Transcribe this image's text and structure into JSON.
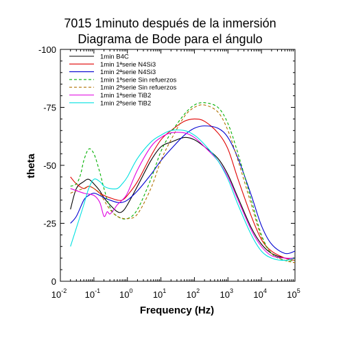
{
  "chart_data": {
    "type": "line",
    "title": [
      "7015 1minuto después de la inmersión",
      "Diagrama de Bode para el ángulo"
    ],
    "xlabel": "Frequency (Hz)",
    "ylabel": "theta",
    "xscale": "log",
    "xlim": [
      0.01,
      100000
    ],
    "ylim": [
      0,
      -100
    ],
    "y_reversed": true,
    "xticks": [
      {
        "base": "10",
        "exp": "-2",
        "value": 0.01
      },
      {
        "base": "10",
        "exp": "-1",
        "value": 0.1
      },
      {
        "base": "10",
        "exp": "0",
        "value": 1
      },
      {
        "base": "10",
        "exp": "1",
        "value": 10
      },
      {
        "base": "10",
        "exp": "2",
        "value": 100
      },
      {
        "base": "10",
        "exp": "3",
        "value": 1000
      },
      {
        "base": "10",
        "exp": "4",
        "value": 10000
      },
      {
        "base": "10",
        "exp": "5",
        "value": 100000
      }
    ],
    "yticks": [
      {
        "label": "0",
        "value": 0
      },
      {
        "label": "-25",
        "value": -25
      },
      {
        "label": "-50",
        "value": -50
      },
      {
        "label": "-75",
        "value": -75
      },
      {
        "label": "-100",
        "value": -100
      }
    ],
    "grid": false,
    "legend_position": "top-left",
    "series": [
      {
        "name": "1min B4C",
        "color": "#000000",
        "dash": "solid",
        "x": [
          0.02,
          0.03,
          0.05,
          0.07,
          0.1,
          0.15,
          0.2,
          0.3,
          0.5,
          0.7,
          1,
          2,
          5,
          10,
          20,
          50,
          100,
          200,
          500,
          1000,
          2000,
          5000,
          10000,
          20000,
          50000,
          100000
        ],
        "y": [
          -31,
          -40,
          -43,
          -44,
          -42,
          -39,
          -36,
          -33,
          -30,
          -30,
          -33,
          -41,
          -52,
          -58,
          -60,
          -62,
          -61,
          -58,
          -53,
          -46,
          -36,
          -23,
          -16,
          -12,
          -10,
          -10
        ]
      },
      {
        "name": "1min 1ªserie N4Si3",
        "color": "#e00000",
        "dash": "solid",
        "x": [
          0.02,
          0.03,
          0.05,
          0.07,
          0.1,
          0.15,
          0.2,
          0.3,
          0.5,
          0.7,
          1,
          2,
          5,
          10,
          20,
          50,
          100,
          200,
          500,
          1000,
          2000,
          5000,
          10000,
          20000,
          50000,
          100000
        ],
        "y": [
          -45,
          -42,
          -40,
          -41,
          -40,
          -38,
          -37,
          -36,
          -35,
          -35,
          -37,
          -43,
          -54,
          -61,
          -65,
          -69,
          -70,
          -69,
          -64,
          -57,
          -44,
          -28,
          -18,
          -13,
          -10,
          -9
        ]
      },
      {
        "name": "1min 2ªserie N4Si3",
        "color": "#0000d0",
        "dash": "solid",
        "x": [
          0.02,
          0.03,
          0.05,
          0.07,
          0.1,
          0.15,
          0.2,
          0.3,
          0.5,
          0.7,
          1,
          2,
          5,
          10,
          20,
          50,
          100,
          200,
          500,
          1000,
          2000,
          5000,
          10000,
          20000,
          50000,
          100000
        ],
        "y": [
          -25,
          -28,
          -35,
          -37,
          -38,
          -37,
          -36,
          -35,
          -34,
          -34,
          -35,
          -39,
          -46,
          -52,
          -57,
          -63,
          -66,
          -67,
          -66,
          -62,
          -53,
          -37,
          -24,
          -16,
          -12,
          -13
        ]
      },
      {
        "name": "1min 1ªserie Sin refuerzos",
        "color": "#00b000",
        "dash": "dashed",
        "x": [
          0.02,
          0.03,
          0.04,
          0.05,
          0.07,
          0.1,
          0.15,
          0.2,
          0.3,
          0.5,
          1,
          2,
          5,
          10,
          20,
          50,
          100,
          200,
          500,
          1000,
          2000,
          5000,
          10000,
          20000,
          50000,
          100000
        ],
        "y": [
          -41,
          -42,
          -46,
          -52,
          -57,
          -55,
          -47,
          -40,
          -32,
          -28,
          -27,
          -31,
          -44,
          -56,
          -64,
          -72,
          -76,
          -77,
          -75,
          -68,
          -55,
          -35,
          -20,
          -12,
          -9,
          -9
        ]
      },
      {
        "name": "1min 2ªserie Sin refuerzos",
        "color": "#b07000",
        "dash": "dashed",
        "x": [
          0.02,
          0.03,
          0.05,
          0.07,
          0.1,
          0.15,
          0.2,
          0.3,
          0.5,
          1,
          2,
          5,
          10,
          20,
          50,
          100,
          200,
          500,
          1000,
          2000,
          5000,
          10000,
          20000,
          50000,
          100000
        ],
        "y": [
          -38,
          -39,
          -40,
          -41,
          -40,
          -38,
          -35,
          -31,
          -28,
          -27,
          -29,
          -40,
          -52,
          -61,
          -71,
          -75,
          -76,
          -73,
          -65,
          -52,
          -33,
          -19,
          -12,
          -9,
          -8
        ]
      },
      {
        "name": "1min 1ªserie TiB2",
        "color": "#e000e0",
        "dash": "solid",
        "x": [
          0.02,
          0.05,
          0.1,
          0.15,
          0.2,
          0.25,
          0.3,
          0.4,
          0.5,
          0.7,
          1,
          2,
          5,
          10,
          20,
          50,
          100,
          200,
          500,
          1000,
          2000,
          5000,
          10000,
          20000,
          50000,
          100000
        ],
        "y": [
          -40,
          -38,
          -37,
          -34,
          -28,
          -30,
          -29,
          -31,
          -33,
          -35,
          -38,
          -48,
          -58,
          -62,
          -64,
          -64,
          -62,
          -58,
          -52,
          -45,
          -35,
          -22,
          -15,
          -11,
          -10,
          -10
        ]
      },
      {
        "name": "1min 2ªserie TiB2",
        "color": "#00e0e0",
        "dash": "solid",
        "x": [
          0.02,
          0.03,
          0.05,
          0.07,
          0.1,
          0.15,
          0.2,
          0.3,
          0.5,
          0.7,
          1,
          2,
          5,
          10,
          20,
          50,
          100,
          200,
          500,
          1000,
          2000,
          5000,
          10000,
          20000,
          50000,
          100000
        ],
        "y": [
          -15,
          -23,
          -33,
          -40,
          -44,
          -43,
          -41,
          -40,
          -40,
          -42,
          -45,
          -53,
          -60,
          -63,
          -65,
          -65,
          -63,
          -59,
          -52,
          -44,
          -33,
          -20,
          -13,
          -10,
          -9,
          -10
        ]
      }
    ]
  }
}
